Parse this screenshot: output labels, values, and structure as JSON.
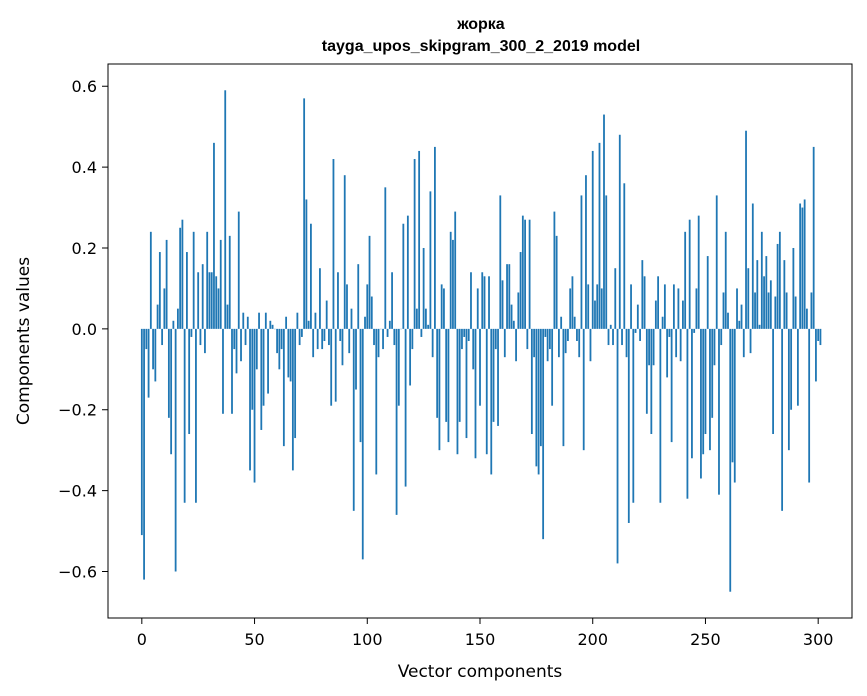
{
  "chart_data": {
    "type": "bar",
    "title": "жорка",
    "subtitle": "tayga_upos_skipgram_300_2_2019 model",
    "xlabel": "Vector components",
    "ylabel": "Components values",
    "xlim": [
      -15,
      315
    ],
    "ylim": [
      -0.715,
      0.655
    ],
    "xticks": [
      0,
      50,
      100,
      150,
      200,
      250,
      300
    ],
    "xtick_labels": [
      "0",
      "50",
      "100",
      "150",
      "200",
      "250",
      "300"
    ],
    "yticks": [
      -0.6,
      -0.4,
      -0.2,
      0.0,
      0.2,
      0.4,
      0.6
    ],
    "ytick_labels": [
      "−0.6",
      "−0.4",
      "−0.2",
      "0.0",
      "0.2",
      "0.4",
      "0.6"
    ],
    "bar_color": "#1f77b4",
    "values": [
      -0.51,
      -0.62,
      -0.05,
      -0.17,
      0.24,
      -0.1,
      -0.13,
      0.06,
      0.19,
      -0.04,
      0.1,
      0.22,
      -0.22,
      -0.31,
      0.02,
      -0.6,
      0.05,
      0.25,
      0.27,
      -0.43,
      0.19,
      -0.26,
      -0.02,
      0.24,
      -0.43,
      0.14,
      -0.04,
      0.16,
      -0.06,
      0.24,
      0.14,
      0.14,
      0.46,
      0.13,
      0.1,
      0.22,
      -0.21,
      0.59,
      0.06,
      0.23,
      -0.21,
      -0.05,
      -0.11,
      0.29,
      -0.08,
      0.04,
      -0.04,
      0.03,
      -0.35,
      -0.2,
      -0.38,
      -0.1,
      0.04,
      -0.25,
      -0.19,
      0.04,
      -0.16,
      0.02,
      0.01,
      0.0,
      -0.06,
      -0.1,
      -0.05,
      -0.29,
      0.03,
      -0.12,
      -0.13,
      -0.35,
      -0.27,
      0.04,
      -0.04,
      -0.02,
      0.57,
      0.32,
      0.02,
      0.26,
      -0.07,
      0.04,
      -0.05,
      0.15,
      -0.05,
      -0.03,
      0.07,
      -0.04,
      -0.19,
      0.42,
      -0.18,
      0.14,
      -0.03,
      -0.09,
      0.38,
      0.11,
      -0.06,
      0.05,
      -0.45,
      -0.15,
      0.16,
      -0.28,
      -0.57,
      0.03,
      0.11,
      0.23,
      0.08,
      -0.04,
      -0.36,
      -0.07,
      0.0,
      -0.05,
      0.35,
      -0.02,
      0.02,
      0.14,
      -0.04,
      -0.46,
      -0.19,
      0.0,
      0.26,
      -0.39,
      0.28,
      -0.14,
      -0.05,
      0.42,
      0.05,
      0.44,
      -0.02,
      0.2,
      0.05,
      0.01,
      0.34,
      -0.07,
      0.45,
      -0.22,
      -0.3,
      0.11,
      0.1,
      -0.23,
      -0.28,
      0.24,
      0.22,
      0.29,
      -0.31,
      -0.23,
      -0.05,
      -0.02,
      -0.27,
      -0.03,
      0.14,
      -0.1,
      -0.32,
      0.1,
      -0.19,
      0.14,
      0.13,
      -0.31,
      0.13,
      -0.36,
      -0.23,
      -0.05,
      -0.24,
      0.33,
      0.12,
      -0.07,
      0.16,
      0.16,
      0.06,
      0.02,
      -0.08,
      0.09,
      0.19,
      0.28,
      0.27,
      -0.05,
      0.27,
      -0.26,
      -0.07,
      -0.34,
      -0.36,
      -0.29,
      -0.52,
      -0.02,
      -0.08,
      -0.05,
      -0.19,
      0.29,
      0.23,
      -0.07,
      0.03,
      -0.29,
      -0.06,
      -0.03,
      0.1,
      0.13,
      0.03,
      -0.03,
      -0.07,
      0.33,
      -0.3,
      0.38,
      0.11,
      -0.08,
      0.44,
      0.07,
      0.11,
      0.46,
      0.1,
      0.53,
      0.33,
      -0.04,
      0.01,
      -0.04,
      0.15,
      -0.58,
      0.48,
      -0.04,
      0.36,
      -0.07,
      -0.48,
      0.11,
      -0.43,
      -0.01,
      0.06,
      -0.03,
      0.17,
      0.13,
      -0.21,
      -0.09,
      -0.26,
      -0.09,
      0.07,
      0.13,
      -0.43,
      0.03,
      0.11,
      -0.12,
      -0.02,
      -0.28,
      0.11,
      -0.07,
      0.1,
      -0.08,
      0.07,
      0.24,
      -0.42,
      0.27,
      -0.32,
      -0.01,
      0.1,
      0.28,
      -0.37,
      -0.31,
      -0.26,
      0.18,
      -0.3,
      -0.22,
      -0.09,
      0.33,
      -0.41,
      -0.04,
      0.09,
      0.24,
      0.04,
      -0.65,
      -0.33,
      -0.38,
      0.1,
      0.02,
      0.06,
      -0.07,
      0.49,
      0.15,
      -0.06,
      0.31,
      0.09,
      0.17,
      0.01,
      0.24,
      0.13,
      0.18,
      0.09,
      0.12,
      -0.26,
      0.08,
      0.21,
      0.24,
      -0.45,
      0.17,
      0.09,
      -0.3,
      -0.2,
      0.2,
      0.08,
      -0.19,
      0.31,
      0.3,
      0.32,
      0.05,
      -0.38,
      0.09,
      0.45,
      -0.13,
      -0.03,
      -0.04
    ]
  }
}
